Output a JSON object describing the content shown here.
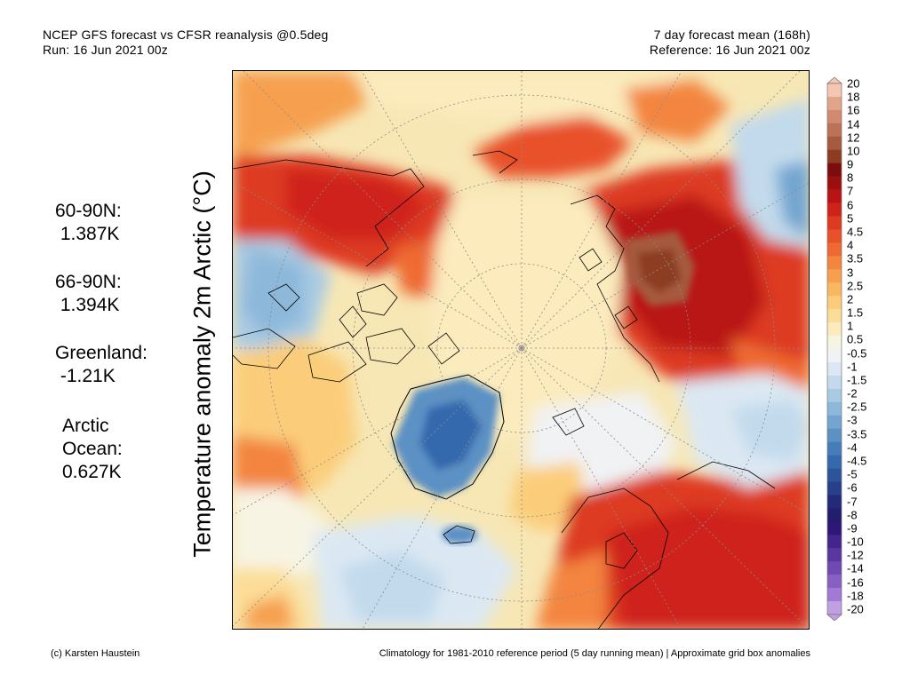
{
  "header": {
    "left_line1": "NCEP GFS forecast vs CFSR reanalysis @0.5deg",
    "left_line2": "Run: 16 Jun 2021 00z",
    "right_line1": "7 day forecast mean (168h)",
    "right_line2": "Reference: 16 Jun 2021 00z"
  },
  "ylabel": "Temperature anomaly 2m Arctic (°C)",
  "stats": [
    {
      "line1": "60-90N:",
      "line2": " 1.387K"
    },
    {
      "line1": "66-90N:",
      "line2": " 1.394K"
    },
    {
      "line1": "Greenland:",
      "line2": " -1.21K"
    },
    {
      "line1": "Arctic",
      "line2": "Ocean:",
      "line3": "0.627K"
    }
  ],
  "colorbar": {
    "labels": [
      "20",
      "18",
      "16",
      "14",
      "12",
      "10",
      "9",
      "8",
      "7",
      "6",
      "5",
      "4.5",
      "4",
      "3.5",
      "3",
      "2.5",
      "2",
      "1.5",
      "1",
      "0.5",
      "-0.5",
      "-1",
      "-1.5",
      "-2",
      "-2.5",
      "-3",
      "-3.5",
      "-4",
      "-4.5",
      "-5",
      "-6",
      "-7",
      "-8",
      "-9",
      "-10",
      "-12",
      "-14",
      "-16",
      "-18",
      "-20"
    ],
    "colors": [
      "#f5c7b2",
      "#e2a58a",
      "#d18a6f",
      "#bb7256",
      "#a65a3e",
      "#8c3d22",
      "#7d0d0d",
      "#9c0f0f",
      "#b91414",
      "#cf231a",
      "#dd3a22",
      "#e8512a",
      "#ef6a33",
      "#f3853f",
      "#f6a04f",
      "#f8b862",
      "#fbcd7a",
      "#fcdd97",
      "#fbebbd",
      "#f7f4e3",
      "#f1f2f4",
      "#dbe8f3",
      "#c2daec",
      "#a8cae3",
      "#8db8da",
      "#73a5d0",
      "#5b91c5",
      "#457dba",
      "#3469ad",
      "#2c549b",
      "#26408a",
      "#222b78",
      "#221d6c",
      "#2d1878",
      "#44258c",
      "#5a36a0",
      "#7049b2",
      "#8860c4",
      "#a27ad3",
      "#bfa0e3"
    ]
  },
  "footer": {
    "left": "(c) Karsten Haustein",
    "right": "Climatology for 1981-2010 reference period (5 day running mean) | Approximate grid box anomalies"
  }
}
